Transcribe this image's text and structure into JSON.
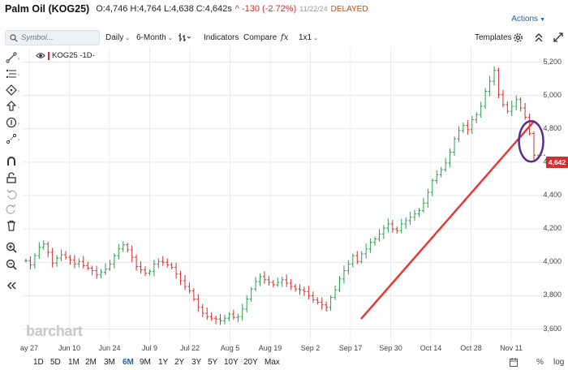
{
  "header": {
    "symbol": "Palm Oil (KOG25)",
    "ohlc": "O:4,746 H:4,764 L:4,638 C:4,642s",
    "change": "^ -130 (-2.72%)",
    "date": "11/22/24",
    "status": "DELAYED",
    "actions_label": "Actions"
  },
  "toolbar": {
    "search_placeholder": "Symbol...",
    "interval": "Daily",
    "range": "6-Month",
    "indicators": "Indicators",
    "compare": "Compare",
    "layout": "1x1",
    "templates": "Templates"
  },
  "legend": {
    "label": "KOG25 -1D-"
  },
  "watermark": "barchart",
  "last_price_label": "4,642",
  "bottom": {
    "periods": [
      "1D",
      "5D",
      "1M",
      "2M",
      "3M",
      "6M",
      "9M",
      "1Y",
      "2Y",
      "3Y",
      "5Y",
      "10Y",
      "20Y",
      "Max"
    ],
    "active_period": "6M",
    "percent_label": "%",
    "log_label": "log"
  },
  "colors": {
    "up": "#2e9d4e",
    "down": "#d32f2f",
    "trendline": "#e53935",
    "circle": "#5b2c8f",
    "accent": "#1565c0"
  },
  "chart_data": {
    "type": "ohlc",
    "y_ticks": [
      3600,
      3800,
      4000,
      4200,
      4400,
      4600,
      4800,
      5000,
      5200
    ],
    "y_tick_labels": [
      "3,600",
      "3,800",
      "4,000",
      "4,200",
      "4,400",
      "4,600",
      "4,800",
      "5,000",
      "5,200"
    ],
    "ylim": [
      3520,
      5290
    ],
    "x_labels": [
      "ay 27",
      "Jun 10",
      "Jun 24",
      "Jul 9",
      "Jul 22",
      "Aug 5",
      "Aug 19",
      "Sep 2",
      "Sep 17",
      "Sep 30",
      "Oct 14",
      "Oct 28",
      "Nov 11"
    ],
    "last_price": 4642,
    "closes": [
      4010,
      3985,
      4040,
      4090,
      4110,
      4060,
      3995,
      4025,
      4045,
      4030,
      4015,
      3990,
      4005,
      3980,
      3965,
      3950,
      3925,
      3940,
      3960,
      3990,
      4040,
      4080,
      4105,
      4075,
      4030,
      3975,
      3955,
      3935,
      3945,
      3990,
      4005,
      4000,
      3985,
      3970,
      3930,
      3890,
      3855,
      3830,
      3780,
      3730,
      3695,
      3675,
      3665,
      3660,
      3650,
      3665,
      3690,
      3670,
      3675,
      3720,
      3780,
      3840,
      3885,
      3915,
      3895,
      3880,
      3865,
      3880,
      3895,
      3875,
      3855,
      3840,
      3835,
      3825,
      3800,
      3775,
      3760,
      3745,
      3730,
      3790,
      3835,
      3900,
      3950,
      3990,
      4040,
      4005,
      4050,
      4080,
      4120,
      4140,
      4170,
      4205,
      4230,
      4200,
      4190,
      4230,
      4250,
      4270,
      4290,
      4310,
      4355,
      4420,
      4490,
      4525,
      4555,
      4595,
      4660,
      4740,
      4790,
      4820,
      4795,
      4855,
      4885,
      4935,
      5025,
      5085,
      5150,
      5005,
      4945,
      4905,
      4935,
      4975,
      4925,
      4870,
      4772,
      4642
    ],
    "trendline": {
      "start": {
        "index": 76,
        "value": 3665
      },
      "end": {
        "index": 115,
        "value": 4845
      }
    },
    "annotation": "circle-around-last-bars"
  }
}
